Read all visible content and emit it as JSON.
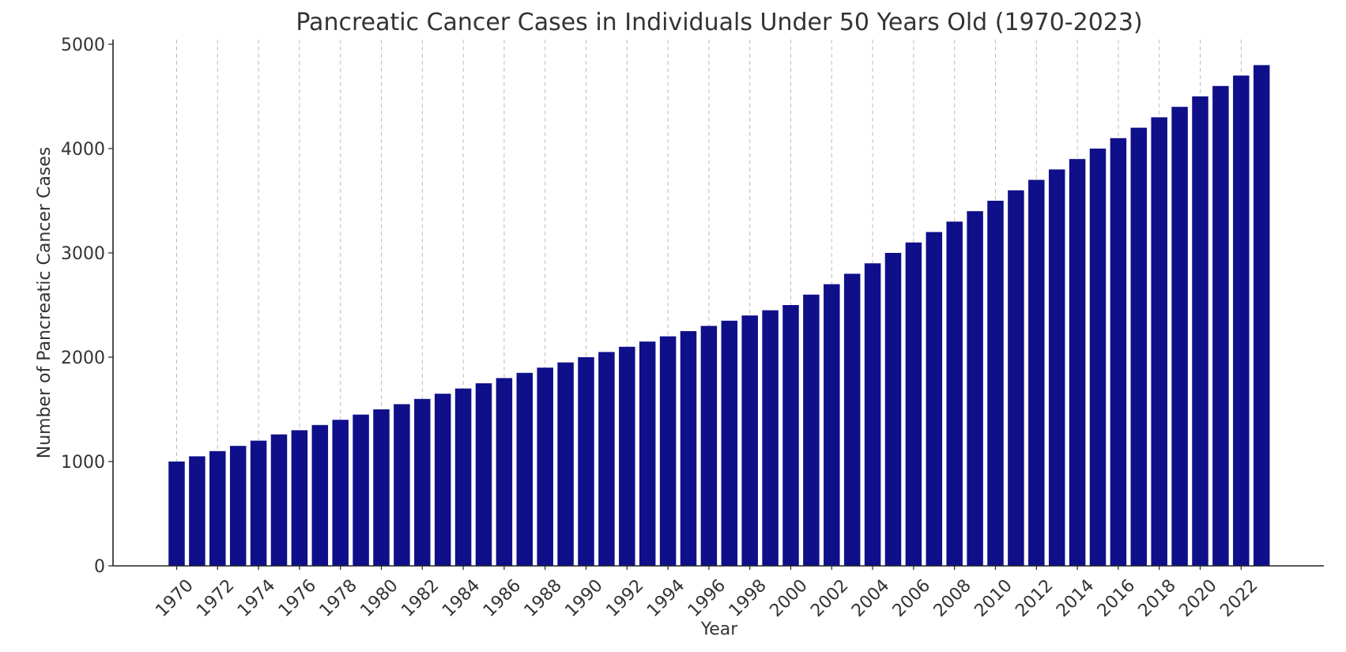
{
  "colors": {
    "bar": "#0f0f8a",
    "axis": "#222222",
    "grid": "#bdbdbd",
    "text": "#333333"
  },
  "chart_data": {
    "type": "bar",
    "title": "Pancreatic Cancer Cases in Individuals Under 50 Years Old (1970-2023)",
    "xlabel": "Year",
    "ylabel": "Number of Pancreatic Cancer Cases",
    "ylim": [
      0,
      5000
    ],
    "yticks": [
      0,
      1000,
      2000,
      3000,
      4000,
      5000
    ],
    "grid": "vertical dashed at labeled years",
    "categories": [
      1970,
      1971,
      1972,
      1973,
      1974,
      1975,
      1976,
      1977,
      1978,
      1979,
      1980,
      1981,
      1982,
      1983,
      1984,
      1985,
      1986,
      1987,
      1988,
      1989,
      1990,
      1991,
      1992,
      1993,
      1994,
      1995,
      1996,
      1997,
      1998,
      1999,
      2000,
      2001,
      2002,
      2003,
      2004,
      2005,
      2006,
      2007,
      2008,
      2009,
      2010,
      2011,
      2012,
      2013,
      2014,
      2015,
      2016,
      2017,
      2018,
      2019,
      2020,
      2021,
      2022,
      2023
    ],
    "xtick_labels": [
      1970,
      1972,
      1974,
      1976,
      1978,
      1980,
      1982,
      1984,
      1986,
      1988,
      1990,
      1992,
      1994,
      1996,
      1998,
      2000,
      2002,
      2004,
      2006,
      2008,
      2010,
      2012,
      2014,
      2016,
      2018,
      2020,
      2022
    ],
    "values": [
      1000,
      1050,
      1100,
      1150,
      1200,
      1260,
      1300,
      1350,
      1400,
      1450,
      1500,
      1550,
      1600,
      1650,
      1700,
      1750,
      1800,
      1850,
      1900,
      1950,
      2000,
      2050,
      2100,
      2150,
      2200,
      2250,
      2300,
      2350,
      2400,
      2450,
      2500,
      2600,
      2700,
      2800,
      2900,
      3000,
      3100,
      3200,
      3300,
      3400,
      3500,
      3600,
      3700,
      3800,
      3900,
      4000,
      4100,
      4200,
      4300,
      4400,
      4500,
      4600,
      4700,
      4800
    ]
  }
}
